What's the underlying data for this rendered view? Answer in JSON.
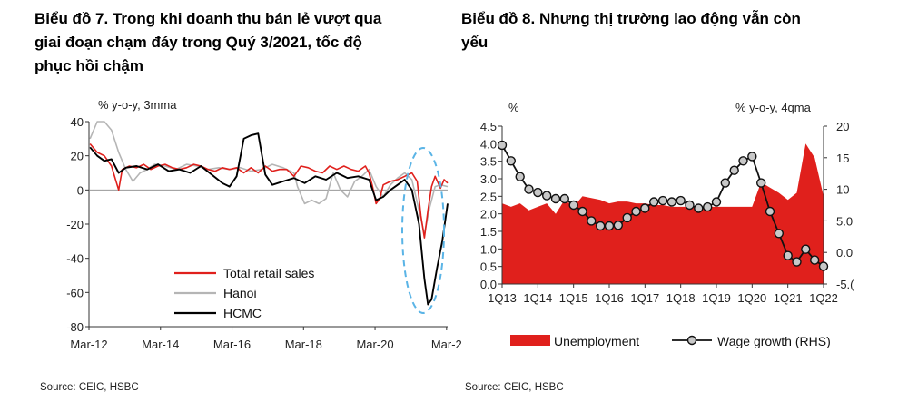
{
  "titles": {
    "left": "Biểu đồ 7. Trong khi doanh thu bán lẻ vượt qua\ngiai đoạn chạm đáy trong Quý 3/2021, tốc độ\nphục hồi chậm",
    "right": "Biểu đồ 8. Nhưng thị trường lao động vẫn còn\nyếu"
  },
  "chart_data": [
    {
      "type": "line",
      "unit_label": "% y-o-y, 3mma",
      "source": "Source: CEIC, HSBC",
      "ylim": [
        -80,
        40
      ],
      "yticks": [
        40,
        20,
        0,
        -20,
        -40,
        -60,
        -80
      ],
      "xticks": [
        "Mar-12",
        "Mar-14",
        "Mar-16",
        "Mar-18",
        "Mar-20",
        "Mar-2"
      ],
      "xrange_years": [
        2012.17,
        2022.2
      ],
      "legend_position": "bottom-center",
      "highlight": "dashed ellipse around 2021–2022",
      "series": [
        {
          "name": "Total retail sales",
          "color": "#e0201c",
          "width": 1.6,
          "x": [
            2012.2,
            2012.4,
            2012.6,
            2012.8,
            2013.0,
            2013.1,
            2013.3,
            2013.5,
            2013.7,
            2013.9,
            2014.1,
            2014.3,
            2014.5,
            2014.7,
            2014.9,
            2015.1,
            2015.3,
            2015.5,
            2015.7,
            2015.9,
            2016.1,
            2016.3,
            2016.5,
            2016.7,
            2016.9,
            2017.1,
            2017.3,
            2017.5,
            2017.7,
            2017.9,
            2018.1,
            2018.3,
            2018.5,
            2018.7,
            2018.9,
            2019.1,
            2019.3,
            2019.5,
            2019.7,
            2019.9,
            2020.0,
            2020.1,
            2020.2,
            2020.3,
            2020.4,
            2020.6,
            2020.8,
            2021.0,
            2021.2,
            2021.35,
            2021.45,
            2021.55,
            2021.65,
            2021.75,
            2021.85,
            2022.0,
            2022.1,
            2022.2
          ],
          "y": [
            27,
            22,
            20,
            14,
            0,
            12,
            14,
            13,
            15,
            12,
            14,
            15,
            13,
            12,
            13,
            15,
            14,
            12,
            11,
            13,
            12,
            13,
            10,
            13,
            10,
            14,
            11,
            12,
            12,
            8,
            14,
            13,
            11,
            10,
            14,
            12,
            14,
            12,
            11,
            14,
            10,
            2,
            -8,
            -5,
            3,
            5,
            6,
            8,
            10,
            5,
            -15,
            -28,
            -12,
            2,
            8,
            1,
            6,
            4
          ]
        },
        {
          "name": "Hanoi",
          "color": "#b5b5b5",
          "width": 1.6,
          "x": [
            2012.2,
            2012.4,
            2012.6,
            2012.8,
            2013.0,
            2013.2,
            2013.4,
            2013.6,
            2013.8,
            2014.0,
            2014.3,
            2014.6,
            2014.9,
            2015.2,
            2015.5,
            2015.8,
            2016.1,
            2016.4,
            2016.7,
            2017.0,
            2017.3,
            2017.6,
            2017.9,
            2018.0,
            2018.2,
            2018.4,
            2018.6,
            2018.8,
            2019.0,
            2019.2,
            2019.4,
            2019.6,
            2019.8,
            2020.0,
            2020.2,
            2020.4,
            2020.6,
            2020.8,
            2021.0,
            2021.2,
            2021.4,
            2021.55,
            2021.7,
            2021.85,
            2022.0,
            2022.2
          ],
          "y": [
            30,
            40,
            40,
            35,
            22,
            12,
            5,
            10,
            12,
            15,
            14,
            12,
            15,
            14,
            12,
            13,
            12,
            13,
            11,
            12,
            15,
            13,
            10,
            2,
            -8,
            -6,
            -8,
            -5,
            10,
            0,
            -4,
            5,
            8,
            12,
            2,
            -4,
            3,
            7,
            10,
            6,
            -12,
            -26,
            -10,
            2,
            3,
            2
          ]
        },
        {
          "name": "HCMC",
          "color": "#000000",
          "width": 1.9,
          "x": [
            2012.2,
            2012.4,
            2012.6,
            2012.8,
            2013.0,
            2013.2,
            2013.5,
            2013.8,
            2014.1,
            2014.4,
            2014.7,
            2015.0,
            2015.3,
            2015.6,
            2015.9,
            2016.1,
            2016.3,
            2016.5,
            2016.7,
            2016.9,
            2017.1,
            2017.3,
            2017.6,
            2017.9,
            2018.2,
            2018.5,
            2018.8,
            2019.1,
            2019.4,
            2019.7,
            2020.0,
            2020.2,
            2020.4,
            2020.6,
            2020.8,
            2021.0,
            2021.2,
            2021.4,
            2021.55,
            2021.65,
            2021.75,
            2021.9,
            2022.05,
            2022.2
          ],
          "y": [
            25,
            20,
            17,
            18,
            10,
            13,
            14,
            12,
            15,
            11,
            12,
            10,
            14,
            9,
            4,
            2,
            8,
            30,
            32,
            33,
            9,
            3,
            5,
            7,
            4,
            8,
            6,
            10,
            7,
            8,
            6,
            -6,
            -4,
            0,
            3,
            6,
            0,
            -20,
            -52,
            -67,
            -64,
            -46,
            -30,
            -8
          ]
        }
      ]
    },
    {
      "type": "area",
      "left_unit": "%",
      "right_unit": "% y-o-y, 4qma",
      "source": "Source: CEIC, HSBC",
      "ylim_left": [
        0,
        4.5
      ],
      "ylim_right": [
        -5,
        20
      ],
      "yticks_left": [
        "4.5",
        "4.0",
        "3.5",
        "3.0",
        "2.5",
        "2.0",
        "1.5",
        "1.0",
        "0.5",
        "0.0"
      ],
      "yticks_right": [
        "20",
        "15",
        "10",
        "5.0",
        "0.0",
        "-5.("
      ],
      "xticks": [
        "1Q13",
        "1Q14",
        "1Q15",
        "1Q16",
        "1Q17",
        "1Q18",
        "1Q19",
        "1Q20",
        "1Q21",
        "1Q22"
      ],
      "series": [
        {
          "name": "Unemployment",
          "axis": "left",
          "color": "#e0201c",
          "x": [
            2013.0,
            2013.25,
            2013.5,
            2013.75,
            2014.0,
            2014.25,
            2014.5,
            2014.75,
            2015.0,
            2015.25,
            2015.5,
            2015.75,
            2016.0,
            2016.25,
            2016.5,
            2016.75,
            2017.0,
            2017.25,
            2017.5,
            2017.75,
            2018.0,
            2018.25,
            2018.5,
            2018.75,
            2019.0,
            2019.25,
            2019.5,
            2019.75,
            2020.0,
            2020.25,
            2020.5,
            2020.75,
            2021.0,
            2021.25,
            2021.5,
            2021.75,
            2022.0
          ],
          "y": [
            2.3,
            2.2,
            2.3,
            2.1,
            2.2,
            2.3,
            2.0,
            2.4,
            2.2,
            2.5,
            2.45,
            2.4,
            2.3,
            2.35,
            2.35,
            2.3,
            2.3,
            2.25,
            2.25,
            2.2,
            2.2,
            2.2,
            2.2,
            2.2,
            2.2,
            2.2,
            2.2,
            2.2,
            2.2,
            2.9,
            2.75,
            2.6,
            2.4,
            2.6,
            4.0,
            3.6,
            2.5
          ]
        },
        {
          "name": "Wage growth (RHS)",
          "axis": "right",
          "color": "#111111",
          "marker": "circle",
          "x": [
            2013.0,
            2013.25,
            2013.5,
            2013.75,
            2014.0,
            2014.25,
            2014.5,
            2014.75,
            2015.0,
            2015.25,
            2015.5,
            2015.75,
            2016.0,
            2016.25,
            2016.5,
            2016.75,
            2017.0,
            2017.25,
            2017.5,
            2017.75,
            2018.0,
            2018.25,
            2018.5,
            2018.75,
            2019.0,
            2019.25,
            2019.5,
            2019.75,
            2020.0,
            2020.25,
            2020.5,
            2020.75,
            2021.0,
            2021.25,
            2021.5,
            2021.75,
            2022.0
          ],
          "y": [
            17,
            14.5,
            12,
            10,
            9.5,
            9,
            8.5,
            8.5,
            7.5,
            6.5,
            5,
            4.2,
            4.2,
            4.3,
            5.5,
            6.5,
            7,
            8,
            8.2,
            8,
            8.2,
            7.5,
            7,
            7.2,
            8,
            11,
            13,
            14.5,
            15.2,
            11,
            6.5,
            3,
            -0.5,
            -1.5,
            0.5,
            -1.2,
            -2.2
          ]
        }
      ]
    }
  ]
}
